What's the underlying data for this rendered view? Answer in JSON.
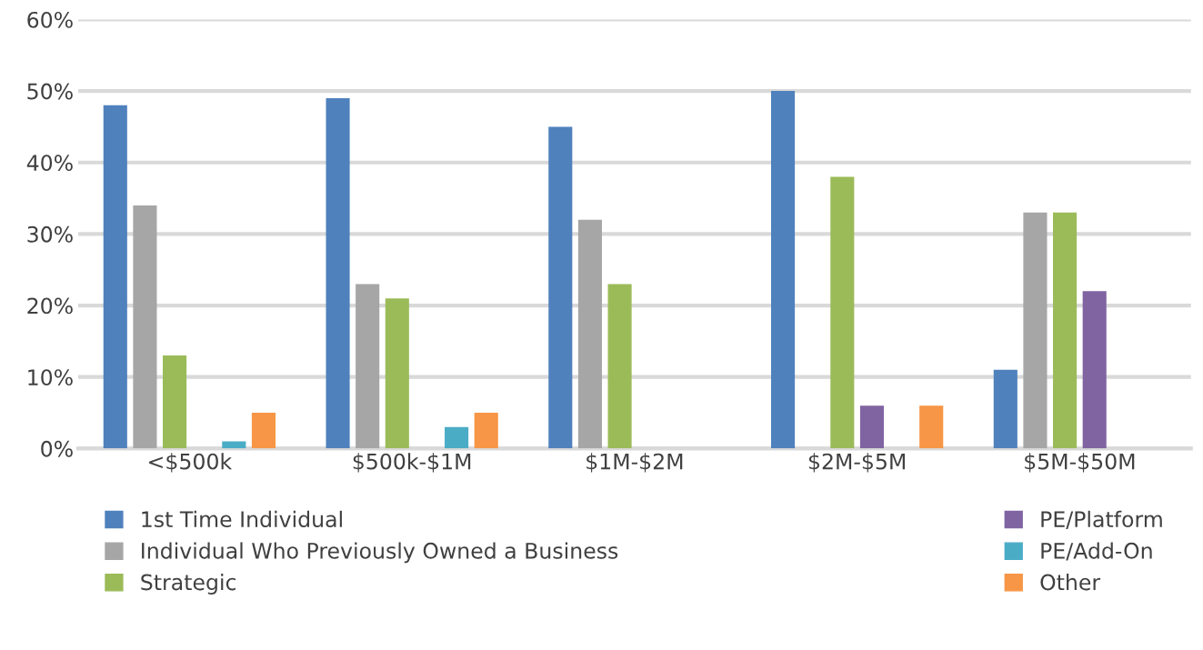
{
  "chart_data": {
    "type": "bar",
    "categories": [
      "<$500k",
      "$500k-$1M",
      "$1M-$2M",
      "$2M-$5M",
      "$5M-$50M"
    ],
    "series": [
      {
        "name": "1st Time Individual",
        "color": "#4f81bd",
        "values": [
          48,
          49,
          45,
          50,
          11
        ]
      },
      {
        "name": "Individual Who Previously Owned a Business",
        "color": "#a6a6a6",
        "values": [
          34,
          23,
          32,
          0,
          33
        ]
      },
      {
        "name": "Strategic",
        "color": "#9bbb59",
        "values": [
          13,
          21,
          23,
          38,
          33
        ]
      },
      {
        "name": "PE/Platform",
        "color": "#8064a2",
        "values": [
          0,
          0,
          0,
          6,
          22
        ]
      },
      {
        "name": "PE/Add-On",
        "color": "#4bacc6",
        "values": [
          1,
          3,
          0,
          0,
          0
        ]
      },
      {
        "name": "Other",
        "color": "#f79646",
        "values": [
          5,
          5,
          0,
          6,
          0
        ]
      }
    ],
    "ylim": [
      0,
      60
    ],
    "yticks": [
      {
        "value": 0,
        "label": "0%"
      },
      {
        "value": 10,
        "label": "10%"
      },
      {
        "value": 20,
        "label": "20%"
      },
      {
        "value": 30,
        "label": "30%"
      },
      {
        "value": 40,
        "label": "40%"
      },
      {
        "value": 50,
        "label": "50%"
      },
      {
        "value": 60,
        "label": "60%"
      }
    ],
    "grid": "y",
    "legend": "bottom"
  }
}
